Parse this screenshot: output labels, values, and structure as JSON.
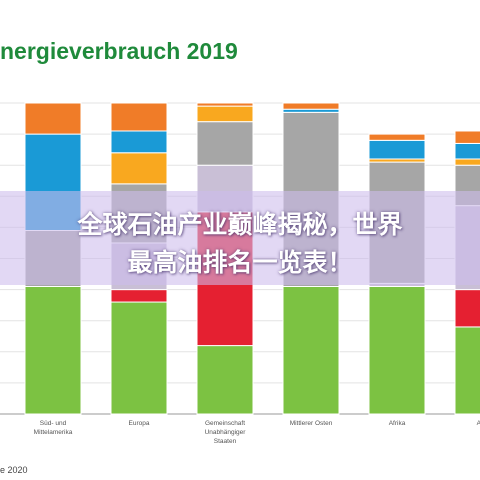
{
  "chart_data": {
    "type": "bar",
    "stacked": true,
    "title": "nergieverbrauch 2019",
    "categories": [
      "Süd- und Mittelamerika",
      "Europa",
      "Gemeinschaft Unabhängiger Staaten",
      "Mittlerer Osten",
      "Afrika",
      "Asien-Pazifik"
    ],
    "category_labels": [
      "Süd- und\nMittelamerika",
      "Europa",
      "Gemeinschaft\nUnabhängiger\nStaaten",
      "Mittlerer Osten",
      "Afrika",
      "Asie"
    ],
    "ylim": [
      0,
      100
    ],
    "grid": true,
    "series": [
      {
        "color": "#7cc242",
        "values": [
          41,
          36,
          22,
          41,
          41,
          28
        ]
      },
      {
        "color": "#e52031",
        "values": [
          0,
          4,
          43,
          0,
          0,
          12
        ]
      },
      {
        "color": "#c9bfd6",
        "values": [
          0,
          15,
          15,
          0,
          1,
          27
        ]
      },
      {
        "color": "#a6a6a6",
        "values": [
          18,
          19,
          14,
          56,
          39,
          13
        ]
      },
      {
        "color": "#f9a81f",
        "values": [
          0,
          10,
          5,
          0,
          1,
          2
        ]
      },
      {
        "color": "#1a9ad6",
        "values": [
          31,
          7,
          0,
          1,
          6,
          5
        ]
      },
      {
        "color": "#f07c28",
        "values": [
          10,
          9,
          1,
          2,
          2,
          4
        ]
      }
    ]
  },
  "banner": {
    "line1": "全球石油产业巅峰揭秘，世界",
    "line2": "最高油排名一览表！"
  },
  "footer": "e 2020"
}
